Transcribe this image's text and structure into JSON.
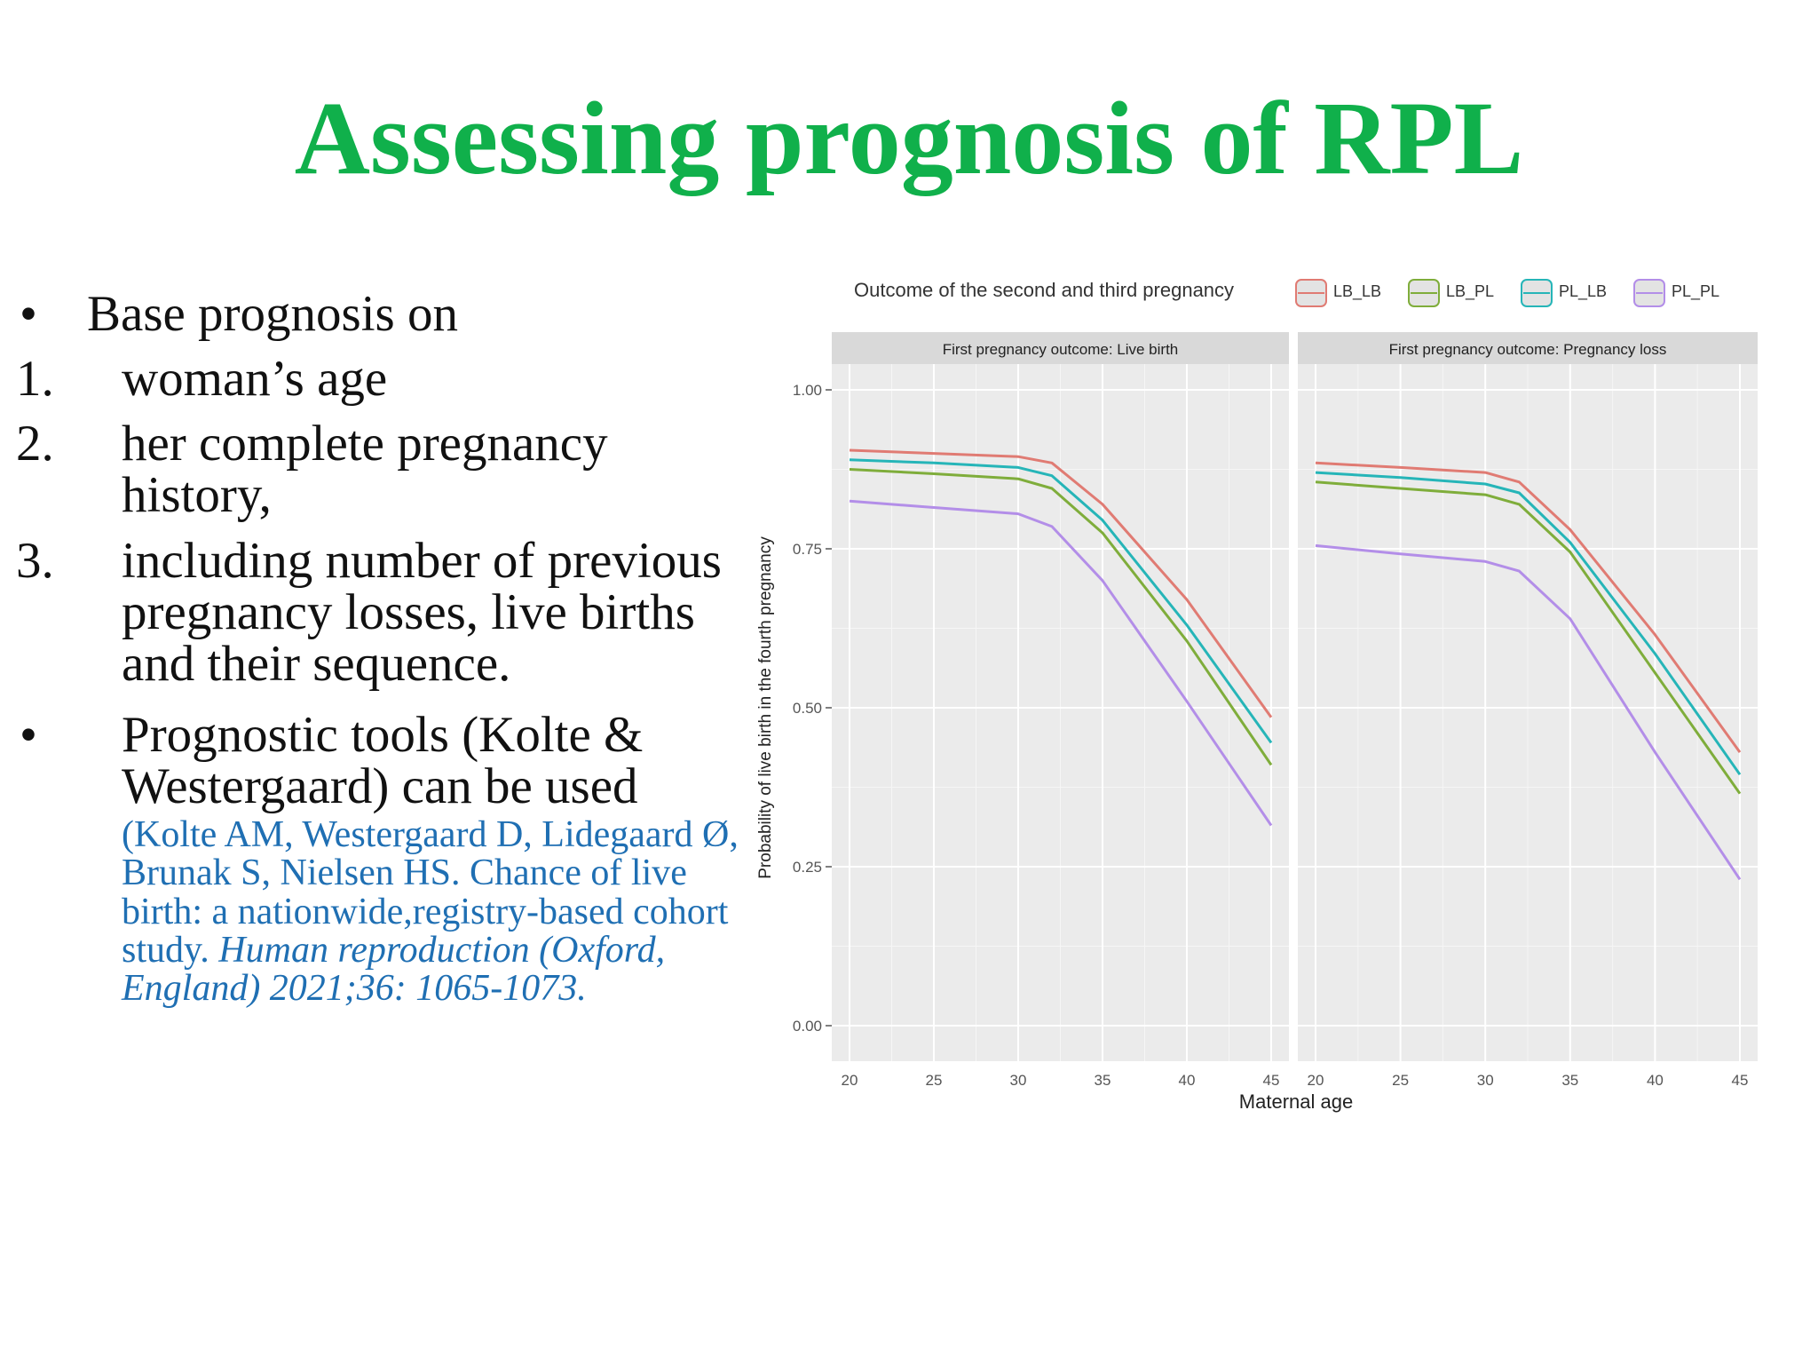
{
  "slide": {
    "title": "Assessing prognosis of RPL",
    "intro_bullet": "Base prognosis on",
    "bullet_symbol": "•",
    "items": [
      {
        "num": "1.",
        "text": "woman’s age"
      },
      {
        "num": "2.",
        "text": "her complete pregnancy history,"
      },
      {
        "num": "3.",
        "text": "including number of previous pregnancy losses, live births and their sequence."
      }
    ],
    "tools_bullet": "Prognostic tools (Kolte & Westergaard) can be used",
    "citation_plain": "(Kolte AM, Westergaard D, Lidegaard Ø, Brunak S, Nielsen HS. Chance of live birth: a nationwide,registry-based cohort study.",
    "citation_journal": "Human reproduction (Oxford, England) 2021;36: 1065-1073."
  },
  "colors": {
    "title": "#10b04b",
    "citation": "#1f6fb3",
    "panel_bg": "#ebebeb",
    "strip_bg": "#d9d9d9"
  },
  "chart_data": {
    "type": "line",
    "legend_title": "Outcome of the second and third pregnancy",
    "legend_position": "top",
    "xlabel": "Maternal age",
    "ylabel": "Probability of live birth in the fourth pregnancy",
    "xlim": [
      20,
      45
    ],
    "ylim": [
      0,
      1
    ],
    "x_ticks": [
      20,
      25,
      30,
      35,
      40,
      45
    ],
    "y_ticks": [
      0,
      0.25,
      0.5,
      0.75,
      1.0
    ],
    "y_tick_labels": [
      "0.00",
      "0.25",
      "0.50",
      "0.75",
      "1.00"
    ],
    "x": [
      20,
      25,
      30,
      32,
      35,
      40,
      45
    ],
    "series_styles": [
      {
        "name": "LB_LB",
        "color": "#e07b73"
      },
      {
        "name": "LB_PL",
        "color": "#7fad3b"
      },
      {
        "name": "PL_LB",
        "color": "#26b5b8"
      },
      {
        "name": "PL_PL",
        "color": "#b38ee8"
      }
    ],
    "panels": [
      {
        "title": "First pregnancy outcome: Live birth",
        "series": [
          {
            "name": "LB_LB",
            "values": [
              0.905,
              0.9,
              0.895,
              0.885,
              0.82,
              0.67,
              0.485
            ]
          },
          {
            "name": "LB_PL",
            "values": [
              0.875,
              0.868,
              0.86,
              0.845,
              0.775,
              0.605,
              0.41
            ]
          },
          {
            "name": "PL_LB",
            "values": [
              0.89,
              0.885,
              0.878,
              0.865,
              0.795,
              0.63,
              0.445
            ]
          },
          {
            "name": "PL_PL",
            "values": [
              0.825,
              0.815,
              0.805,
              0.785,
              0.7,
              0.51,
              0.315
            ]
          }
        ]
      },
      {
        "title": "First pregnancy outcome: Pregnancy loss",
        "series": [
          {
            "name": "LB_LB",
            "values": [
              0.885,
              0.878,
              0.87,
              0.855,
              0.78,
              0.615,
              0.43
            ]
          },
          {
            "name": "LB_PL",
            "values": [
              0.855,
              0.845,
              0.835,
              0.82,
              0.745,
              0.555,
              0.365
            ]
          },
          {
            "name": "PL_LB",
            "values": [
              0.87,
              0.862,
              0.852,
              0.838,
              0.76,
              0.585,
              0.395
            ]
          },
          {
            "name": "PL_PL",
            "values": [
              0.755,
              0.742,
              0.73,
              0.715,
              0.64,
              0.43,
              0.23
            ]
          }
        ]
      }
    ]
  }
}
